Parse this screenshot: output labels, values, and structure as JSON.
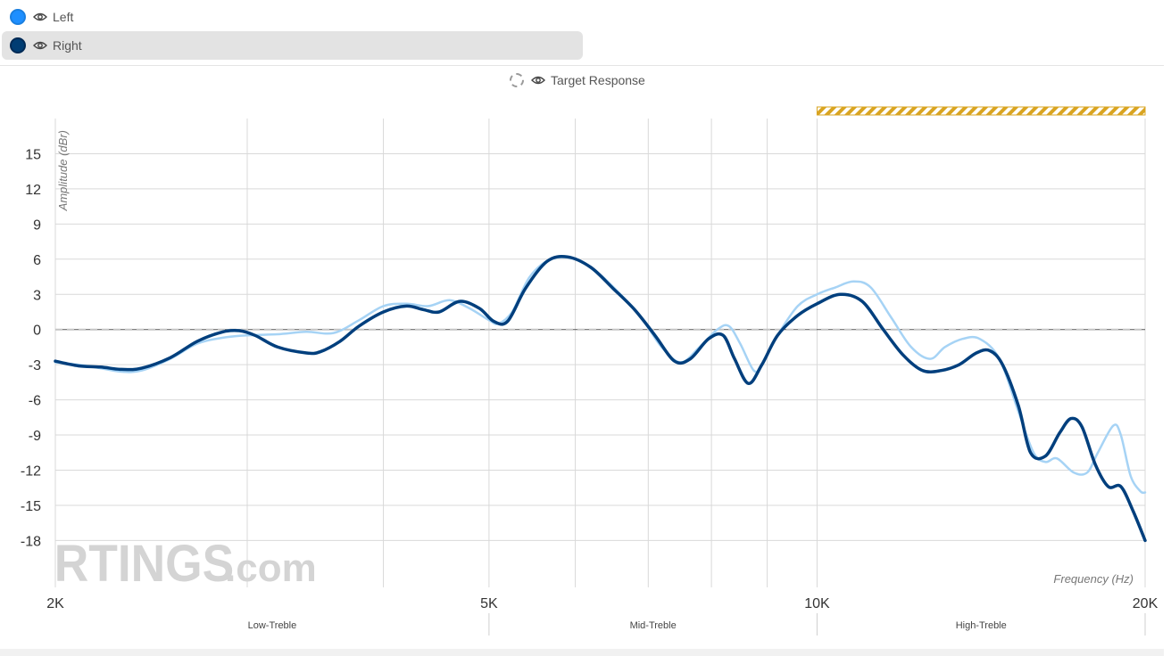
{
  "legend": {
    "items": [
      {
        "label": "Left",
        "color": "#1e8fff",
        "border": "#1a7fe0",
        "selected": false
      },
      {
        "label": "Right",
        "color": "#003d73",
        "border": "#002a55",
        "selected": true
      }
    ],
    "target_label": "Target Response"
  },
  "watermark": {
    "brand": "RTINGS",
    "suffix": ".com"
  },
  "chart_data": {
    "type": "line",
    "xlabel": "Frequency (Hz)",
    "ylabel": "Amplitude (dBr)",
    "x_scale": "log",
    "xlim": [
      2000,
      20000
    ],
    "ylim": [
      -22,
      18
    ],
    "x_ticks": [
      {
        "value": 2000,
        "label": "2K"
      },
      {
        "value": 5000,
        "label": "5K"
      },
      {
        "value": 10000,
        "label": "10K"
      },
      {
        "value": 20000,
        "label": "20K"
      }
    ],
    "y_ticks": [
      15,
      12,
      9,
      6,
      3,
      0,
      -3,
      -6,
      -9,
      -12,
      -15,
      -18
    ],
    "x_gridlines": [
      2000,
      3000,
      4000,
      5000,
      6000,
      7000,
      8000,
      9000,
      10000,
      20000
    ],
    "reference_line": 0,
    "highlight_range": [
      10000,
      20000
    ],
    "highlight_color": "#d9a420",
    "regions": [
      {
        "label": "Low-Treble",
        "from": 2000,
        "to": 5000
      },
      {
        "label": "Mid-Treble",
        "from": 5000,
        "to": 10000
      },
      {
        "label": "High-Treble",
        "from": 10000,
        "to": 20000
      }
    ],
    "series": [
      {
        "name": "Left",
        "color": "#a6d3f5",
        "width": 2.5,
        "points": [
          [
            2000,
            -2.8
          ],
          [
            2100,
            -3.0
          ],
          [
            2200,
            -3.3
          ],
          [
            2300,
            -3.6
          ],
          [
            2400,
            -3.5
          ],
          [
            2550,
            -2.5
          ],
          [
            2700,
            -1.2
          ],
          [
            2850,
            -0.7
          ],
          [
            3000,
            -0.5
          ],
          [
            3200,
            -0.4
          ],
          [
            3400,
            -0.2
          ],
          [
            3600,
            -0.3
          ],
          [
            3800,
            0.8
          ],
          [
            4000,
            2.0
          ],
          [
            4200,
            2.2
          ],
          [
            4400,
            2.0
          ],
          [
            4600,
            2.5
          ],
          [
            4800,
            1.8
          ],
          [
            5000,
            0.8
          ],
          [
            5100,
            0.5
          ],
          [
            5250,
            1.5
          ],
          [
            5450,
            4.5
          ],
          [
            5700,
            6.0
          ],
          [
            6000,
            6.0
          ],
          [
            6300,
            4.8
          ],
          [
            6600,
            3.0
          ],
          [
            6900,
            1.0
          ],
          [
            7200,
            -1.5
          ],
          [
            7500,
            -2.8
          ],
          [
            7800,
            -1.5
          ],
          [
            8100,
            0.0
          ],
          [
            8300,
            0.3
          ],
          [
            8500,
            -1.2
          ],
          [
            8750,
            -3.5
          ],
          [
            8900,
            -3.0
          ],
          [
            9200,
            -0.5
          ],
          [
            9600,
            2.0
          ],
          [
            10000,
            3.0
          ],
          [
            10400,
            3.6
          ],
          [
            10800,
            4.1
          ],
          [
            11200,
            3.6
          ],
          [
            11700,
            1.0
          ],
          [
            12200,
            -1.5
          ],
          [
            12700,
            -2.5
          ],
          [
            13100,
            -1.5
          ],
          [
            13600,
            -0.8
          ],
          [
            14100,
            -0.8
          ],
          [
            14700,
            -2.5
          ],
          [
            15300,
            -7.0
          ],
          [
            15800,
            -10.5
          ],
          [
            16200,
            -11.3
          ],
          [
            16600,
            -11.0
          ],
          [
            17200,
            -12.2
          ],
          [
            17700,
            -12.2
          ],
          [
            18100,
            -10.5
          ],
          [
            18700,
            -8.2
          ],
          [
            19000,
            -9.0
          ],
          [
            19400,
            -12.5
          ],
          [
            19800,
            -13.8
          ],
          [
            20000,
            -13.9
          ]
        ]
      },
      {
        "name": "Right",
        "color": "#003f7d",
        "width": 3.5,
        "points": [
          [
            2000,
            -2.7
          ],
          [
            2100,
            -3.1
          ],
          [
            2200,
            -3.2
          ],
          [
            2300,
            -3.4
          ],
          [
            2400,
            -3.3
          ],
          [
            2550,
            -2.4
          ],
          [
            2700,
            -1.0
          ],
          [
            2850,
            -0.2
          ],
          [
            2950,
            -0.1
          ],
          [
            3050,
            -0.5
          ],
          [
            3200,
            -1.5
          ],
          [
            3400,
            -2.0
          ],
          [
            3500,
            -1.9
          ],
          [
            3650,
            -1.0
          ],
          [
            3800,
            0.3
          ],
          [
            4000,
            1.5
          ],
          [
            4200,
            2.0
          ],
          [
            4350,
            1.7
          ],
          [
            4500,
            1.5
          ],
          [
            4700,
            2.4
          ],
          [
            4900,
            1.8
          ],
          [
            5050,
            0.7
          ],
          [
            5200,
            0.7
          ],
          [
            5400,
            3.5
          ],
          [
            5650,
            5.8
          ],
          [
            5900,
            6.2
          ],
          [
            6200,
            5.3
          ],
          [
            6500,
            3.5
          ],
          [
            6800,
            1.7
          ],
          [
            7100,
            -0.5
          ],
          [
            7400,
            -2.7
          ],
          [
            7650,
            -2.5
          ],
          [
            7950,
            -0.8
          ],
          [
            8200,
            -0.5
          ],
          [
            8400,
            -2.5
          ],
          [
            8650,
            -4.6
          ],
          [
            8900,
            -3.0
          ],
          [
            9200,
            -0.5
          ],
          [
            9600,
            1.2
          ],
          [
            10000,
            2.2
          ],
          [
            10500,
            3.0
          ],
          [
            11000,
            2.4
          ],
          [
            11500,
            0.0
          ],
          [
            12000,
            -2.2
          ],
          [
            12500,
            -3.5
          ],
          [
            13000,
            -3.5
          ],
          [
            13500,
            -3.0
          ],
          [
            14000,
            -2.0
          ],
          [
            14400,
            -1.8
          ],
          [
            14800,
            -3.0
          ],
          [
            15300,
            -6.5
          ],
          [
            15700,
            -10.5
          ],
          [
            16200,
            -10.8
          ],
          [
            16700,
            -8.8
          ],
          [
            17100,
            -7.6
          ],
          [
            17500,
            -8.3
          ],
          [
            18000,
            -11.5
          ],
          [
            18500,
            -13.4
          ],
          [
            19000,
            -13.4
          ],
          [
            19500,
            -15.5
          ],
          [
            20000,
            -18.0
          ]
        ]
      }
    ]
  }
}
